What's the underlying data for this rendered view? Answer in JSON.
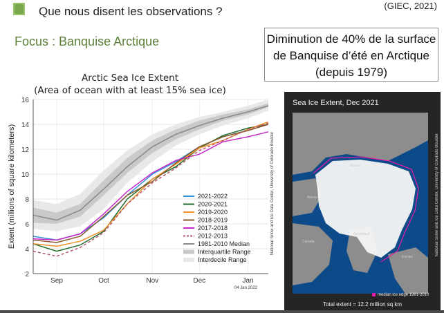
{
  "header": {
    "title": "Que nous disent les observations ?",
    "reference": "(GIEC, 2021)",
    "focus": "Focus : Banquise Arctique"
  },
  "callout": {
    "text": "Diminution de 40% de la surface de Banquise d’été en Arctique (depuis 1979)"
  },
  "chart_data": {
    "type": "line",
    "title": "Arctic Sea Ice Extent",
    "subtitle": "(Area of ocean with at least 15% sea ice)",
    "ylabel": "Extent (millions of square kilometers)",
    "xlabel": "",
    "ylim": [
      2,
      16
    ],
    "yticks": [
      2,
      4,
      6,
      8,
      10,
      12,
      14,
      16
    ],
    "xlim": [
      0,
      150
    ],
    "xticks": [
      {
        "label": "Sep",
        "x": 15
      },
      {
        "label": "Oct",
        "x": 45
      },
      {
        "label": "Nov",
        "x": 76
      },
      {
        "label": "Dec",
        "x": 106
      },
      {
        "label": "Jan",
        "x": 137
      }
    ],
    "date_label": "04 Jan 2022",
    "credit": "National Snow and Ice Data Center, University of Colorado Boulder",
    "legend_position": "bottom-right",
    "grid": true,
    "interdecile": {
      "x": [
        0,
        15,
        30,
        45,
        60,
        76,
        91,
        106,
        121,
        137,
        150
      ],
      "low": [
        5.6,
        5.4,
        5.8,
        7.2,
        9.3,
        11.0,
        12.3,
        13.2,
        13.9,
        14.5,
        15.1
      ],
      "high": [
        7.9,
        7.6,
        8.4,
        10.3,
        11.9,
        13.2,
        14.0,
        14.6,
        15.0,
        15.5,
        16.0
      ]
    },
    "interquartile": {
      "x": [
        0,
        15,
        30,
        45,
        60,
        76,
        91,
        106,
        121,
        137,
        150
      ],
      "low": [
        6.1,
        6.0,
        6.6,
        8.3,
        10.1,
        11.7,
        12.8,
        13.6,
        14.3,
        14.8,
        15.4
      ],
      "high": [
        7.3,
        6.9,
        7.6,
        9.5,
        11.3,
        12.7,
        13.6,
        14.3,
        14.8,
        15.2,
        15.7
      ]
    },
    "median": {
      "name": "1981-2010 Median",
      "x": [
        0,
        15,
        30,
        45,
        60,
        76,
        91,
        106,
        121,
        137,
        150
      ],
      "values": [
        6.7,
        6.3,
        7.1,
        8.8,
        10.6,
        12.2,
        13.2,
        13.9,
        14.5,
        15.0,
        15.5
      ]
    },
    "series": [
      {
        "name": "2021-2022",
        "color": "#2f8fd8",
        "x": [
          0,
          15,
          30,
          45,
          60,
          76,
          91,
          106,
          121,
          133
        ],
        "values": [
          5.0,
          4.7,
          5.2,
          6.5,
          8.3,
          10.0,
          11.0,
          12.2,
          13.0,
          13.4
        ]
      },
      {
        "name": "2020-2021",
        "color": "#1f6b2a",
        "x": [
          0,
          15,
          30,
          45,
          60,
          76,
          91,
          106,
          121,
          137,
          150
        ],
        "values": [
          4.4,
          3.8,
          4.3,
          5.4,
          8.0,
          9.6,
          10.6,
          12.1,
          13.1,
          13.7,
          14.0
        ]
      },
      {
        "name": "2019-2020",
        "color": "#f0902a",
        "x": [
          0,
          15,
          30,
          45,
          60,
          76,
          91,
          106,
          121,
          137,
          150
        ],
        "values": [
          4.4,
          4.2,
          4.6,
          5.5,
          7.6,
          9.6,
          10.8,
          12.1,
          12.7,
          13.6,
          14.2
        ]
      },
      {
        "name": "2018-2019",
        "color": "#8b5a2b",
        "x": [
          0,
          15,
          30,
          45,
          60,
          76,
          91,
          106,
          121,
          137,
          150
        ],
        "values": [
          4.7,
          4.5,
          5.0,
          6.6,
          8.3,
          9.4,
          10.9,
          12.2,
          13.0,
          13.5,
          14.0
        ]
      },
      {
        "name": "2017-2018",
        "color": "#c627c9",
        "x": [
          0,
          15,
          30,
          45,
          60,
          76,
          91,
          106,
          121,
          137,
          150
        ],
        "values": [
          4.8,
          4.7,
          5.2,
          6.8,
          8.6,
          10.1,
          11.1,
          11.6,
          12.6,
          13.0,
          13.4
        ]
      },
      {
        "name": "2012-2013",
        "color": "#b4556a",
        "dashed": true,
        "x": [
          0,
          15,
          30,
          45,
          60,
          76,
          91,
          106,
          121,
          137,
          150
        ],
        "values": [
          3.8,
          3.4,
          4.1,
          5.3,
          7.6,
          9.3,
          10.5,
          11.9,
          12.7,
          13.6,
          14.1
        ]
      }
    ],
    "legend_extra": [
      "Interquartile Range",
      "Interdecile Range"
    ]
  },
  "map": {
    "title": "Sea Ice Extent, Dec 2021",
    "total": "Total extent = 12.2 million sq km",
    "legend": "median ice edge 1981-2010",
    "credit": "National Snow and Ice Data Center, University of Colorado Boulder",
    "places": [
      "Russia",
      "Alaska",
      "Canada",
      "Greenland",
      "Europe"
    ],
    "colors": {
      "ocean": "#0d4a8a",
      "land": "#8d8d8d",
      "ice": "#f5f5f5",
      "median_edge": "#e51da8"
    }
  }
}
